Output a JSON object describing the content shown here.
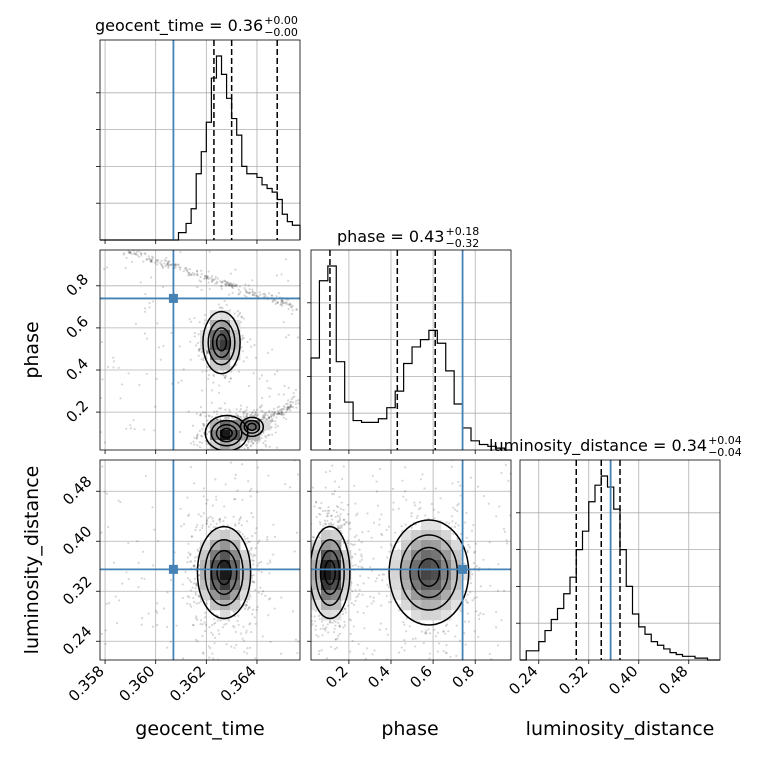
{
  "chart_data": {
    "type": "corner",
    "parameters": [
      "geocent_time",
      "phase",
      "luminosity_distance"
    ],
    "truth_color": "#4682b4",
    "titles": [
      {
        "param": "geocent_time",
        "text": "geocent_time = 0.36",
        "sup": "+0.00",
        "sub": "−0.00"
      },
      {
        "param": "phase",
        "text": "phase = 0.43",
        "sup": "+0.18",
        "sub": "−0.32"
      },
      {
        "param": "luminosity_distance",
        "text": "luminosity_distance = 0.34",
        "sup": "+0.04",
        "sub": "−0.04"
      }
    ],
    "axis_labels": {
      "geocent_time": "geocent_time",
      "phase": "phase",
      "luminosity_distance": "luminosity_distance"
    },
    "ranges": {
      "geocent_time": [
        0.3578,
        0.3657
      ],
      "phase": [
        0.02,
        0.97
      ],
      "luminosity_distance": [
        0.21,
        0.53
      ]
    },
    "ticks": {
      "geocent_time": [
        0.358,
        0.36,
        0.362,
        0.364
      ],
      "phase": [
        0.2,
        0.4,
        0.6,
        0.8
      ],
      "luminosity_distance": [
        0.24,
        0.32,
        0.4,
        0.48
      ]
    },
    "tick_labels": {
      "geocent_time": [
        "0.358",
        "0.360",
        "0.362",
        "0.364"
      ],
      "phase": [
        "0.2",
        "0.4",
        "0.6",
        "0.8"
      ],
      "luminosity_distance": [
        "0.24",
        "0.32",
        "0.40",
        "0.48"
      ]
    },
    "truths": {
      "geocent_time": 0.3607,
      "phase": 0.74,
      "luminosity_distance": 0.355
    },
    "quantiles": {
      "geocent_time": [
        0.3623,
        0.363,
        0.3648
      ],
      "phase": [
        0.11,
        0.43,
        0.61
      ],
      "luminosity_distance": [
        0.3,
        0.34,
        0.37
      ]
    },
    "histograms": {
      "geocent_time": {
        "edges": [
          0.3578,
          0.3609,
          0.3612,
          0.3614,
          0.3616,
          0.3618,
          0.362,
          0.3622,
          0.3624,
          0.3626,
          0.3628,
          0.363,
          0.3632,
          0.3634,
          0.3636,
          0.3638,
          0.364,
          0.3642,
          0.3644,
          0.3646,
          0.3648,
          0.365,
          0.3652,
          0.3654,
          0.3657
        ],
        "counts": [
          0,
          0.04,
          0.09,
          0.17,
          0.36,
          0.48,
          0.64,
          0.88,
          1.0,
          0.9,
          0.77,
          0.66,
          0.57,
          0.4,
          0.36,
          0.36,
          0.34,
          0.3,
          0.28,
          0.26,
          0.22,
          0.14,
          0.1,
          0.08
        ]
      },
      "phase": {
        "edges": [
          0.02,
          0.06,
          0.1,
          0.14,
          0.18,
          0.22,
          0.26,
          0.3,
          0.34,
          0.38,
          0.42,
          0.46,
          0.5,
          0.54,
          0.58,
          0.62,
          0.66,
          0.7,
          0.74,
          0.78,
          0.82,
          0.86,
          0.9,
          0.94,
          0.97
        ],
        "counts": [
          0.5,
          0.92,
          1.0,
          0.48,
          0.26,
          0.16,
          0.15,
          0.15,
          0.17,
          0.23,
          0.32,
          0.47,
          0.56,
          0.6,
          0.65,
          0.58,
          0.43,
          0.25,
          0.12,
          0.05,
          0.03,
          0.02,
          0.01,
          0.0
        ]
      },
      "luminosity_distance": {
        "edges": [
          0.21,
          0.22,
          0.24,
          0.25,
          0.26,
          0.27,
          0.28,
          0.29,
          0.3,
          0.31,
          0.32,
          0.33,
          0.34,
          0.35,
          0.36,
          0.37,
          0.38,
          0.39,
          0.4,
          0.41,
          0.42,
          0.43,
          0.44,
          0.45,
          0.46,
          0.47,
          0.48,
          0.49,
          0.51,
          0.53
        ],
        "counts": [
          0.0,
          0.05,
          0.1,
          0.16,
          0.22,
          0.28,
          0.36,
          0.45,
          0.6,
          0.7,
          0.86,
          0.95,
          1.0,
          0.94,
          0.82,
          0.6,
          0.4,
          0.25,
          0.18,
          0.14,
          0.1,
          0.08,
          0.06,
          0.04,
          0.03,
          0.02,
          0.02,
          0.01,
          0.0
        ]
      }
    },
    "pairs": [
      {
        "x": "geocent_time",
        "y": "phase",
        "modes": [
          {
            "cx": 0.3626,
            "cy": 0.53,
            "sx": 0.00035,
            "sy": 0.07,
            "w": 0.45
          },
          {
            "cx": 0.3628,
            "cy": 0.1,
            "sx": 0.0004,
            "sy": 0.04,
            "w": 0.5
          },
          {
            "cx": 0.3638,
            "cy": 0.13,
            "sx": 0.0003,
            "sy": 0.03,
            "w": 0.35
          }
        ],
        "streak": {
          "x0": 0.3588,
          "x1": 0.3655,
          "y0": 0.97,
          "y1": 0.7
        },
        "streak2": {
          "x0": 0.3625,
          "x1": 0.3657,
          "y0": 0.06,
          "y1": 0.25
        }
      },
      {
        "x": "geocent_time",
        "y": "luminosity_distance",
        "modes": [
          {
            "cx": 0.3627,
            "cy": 0.35,
            "sx": 0.0005,
            "sy": 0.035,
            "w": 1.0
          }
        ]
      },
      {
        "x": "phase",
        "y": "luminosity_distance",
        "modes": [
          {
            "cx": 0.11,
            "cy": 0.35,
            "sx": 0.045,
            "sy": 0.035,
            "w": 1.0
          },
          {
            "cx": 0.58,
            "cy": 0.35,
            "sx": 0.09,
            "sy": 0.04,
            "w": 0.75
          }
        ]
      }
    ]
  }
}
